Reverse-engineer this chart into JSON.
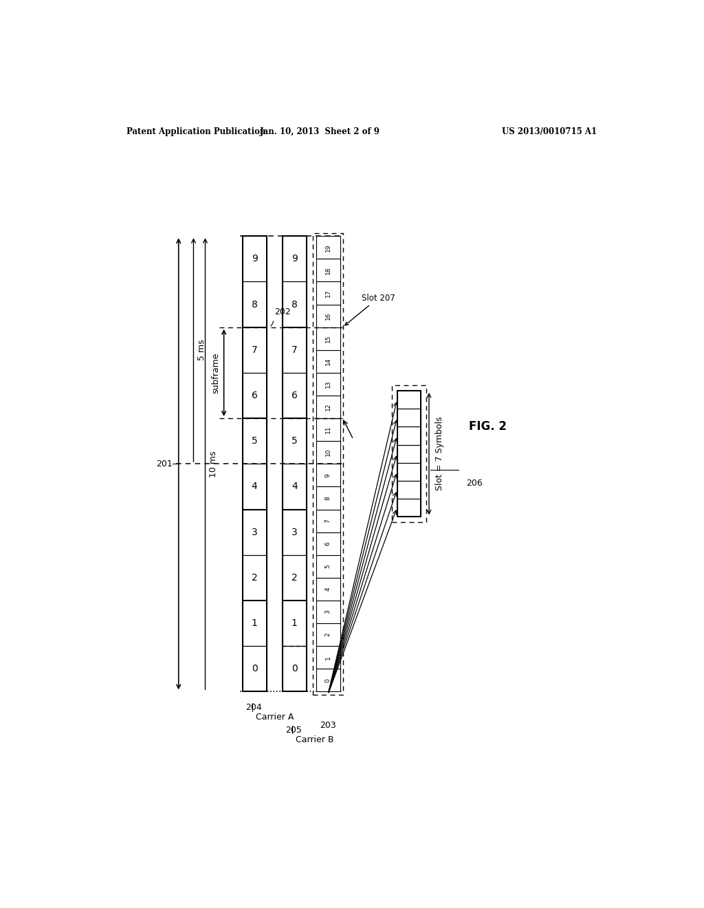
{
  "header_left": "Patent Application Publication",
  "header_center": "Jan. 10, 2013  Sheet 2 of 9",
  "header_right": "US 2013/0010715 A1",
  "fig_label": "FIG. 2",
  "bg_color": "#ffffff",
  "line_color": "#000000",
  "carrier_a_slots": [
    "0",
    "1",
    "2",
    "3",
    "4",
    "5",
    "6",
    "7",
    "8",
    "9"
  ],
  "carrier_b_slots": [
    "0",
    "1",
    "2",
    "3",
    "4",
    "5",
    "6",
    "7",
    "8",
    "9"
  ],
  "slot_labels_20": [
    "0",
    "1",
    "2",
    "3",
    "4",
    "5",
    "6",
    "7",
    "8",
    "9",
    "10",
    "11",
    "12",
    "13",
    "14",
    "15",
    "16",
    "17",
    "18",
    "19"
  ],
  "symbol_count": 7,
  "label_201": "201",
  "label_202": "202",
  "label_203": "203",
  "label_204": "204",
  "label_205": "205",
  "label_206": "206",
  "label_207": "Slot 207",
  "text_5ms": "5 ms",
  "text_10ms": "10 ms",
  "text_subframe": "subframe",
  "text_carrier_a": "Carrier A",
  "text_carrier_b": "Carrier B",
  "text_slot_symbols": "Slot = 7 Symbols"
}
